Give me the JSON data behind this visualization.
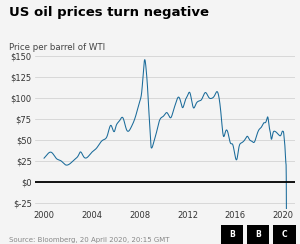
{
  "title": "US oil prices turn negative",
  "subtitle": "Price per barrel of WTI",
  "source": "Source: Bloomberg, 20 April 2020, 20:15 GMT",
  "ytick_labels": [
    "$150",
    "$125",
    "$100",
    "$75",
    "$50",
    "$25",
    "$0",
    "$-25"
  ],
  "ytick_values": [
    150,
    125,
    100,
    75,
    50,
    25,
    0,
    -25
  ],
  "xtick_labels": [
    "2000",
    "2004",
    "2008",
    "2012",
    "2016",
    "2020"
  ],
  "xtick_values": [
    2000,
    2004,
    2008,
    2012,
    2016,
    2020
  ],
  "xlim": [
    1999.2,
    2021.0
  ],
  "ylim": [
    -32,
    158
  ],
  "line_color": "#1a6b9a",
  "zero_line_color": "#000000",
  "background_color": "#f4f4f4",
  "title_color": "#000000",
  "subtitle_color": "#444444",
  "source_color": "#888888",
  "grid_color": "#cccccc",
  "title_fontsize": 9.5,
  "subtitle_fontsize": 6.2,
  "source_fontsize": 5.0,
  "tick_fontsize": 6.0
}
